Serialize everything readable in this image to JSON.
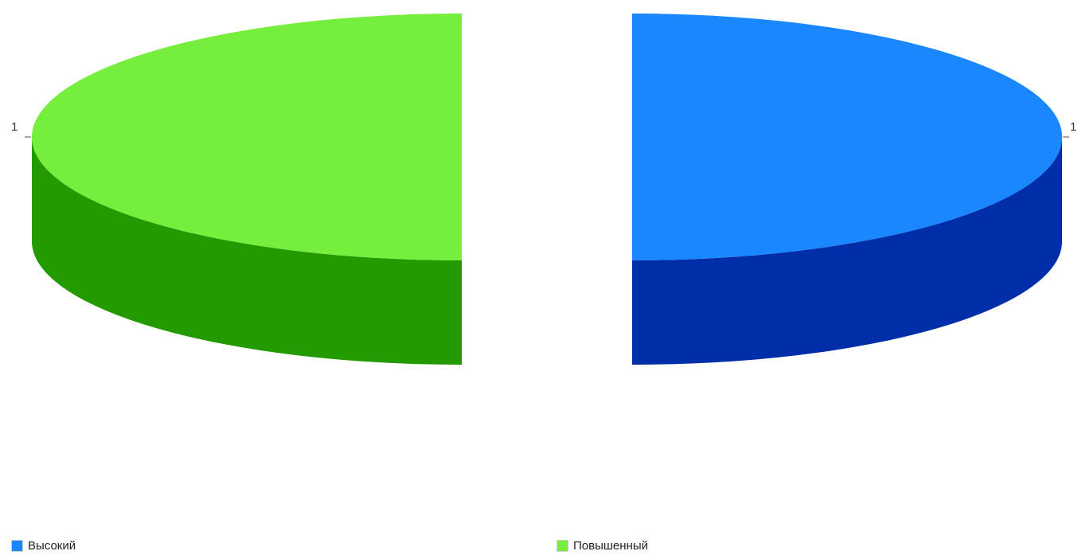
{
  "chart_data": {
    "type": "pie",
    "style": "3d-exploded",
    "slices": [
      {
        "label": "Высокий",
        "value": 1,
        "value_label": "1",
        "top_color": "#1a86ff",
        "side_color": "#002ea8"
      },
      {
        "label": "Повышенный",
        "value": 1,
        "value_label": "1",
        "top_color": "#76ee3e",
        "side_color": "#239a00"
      }
    ],
    "legend": {
      "position": "bottom"
    }
  }
}
